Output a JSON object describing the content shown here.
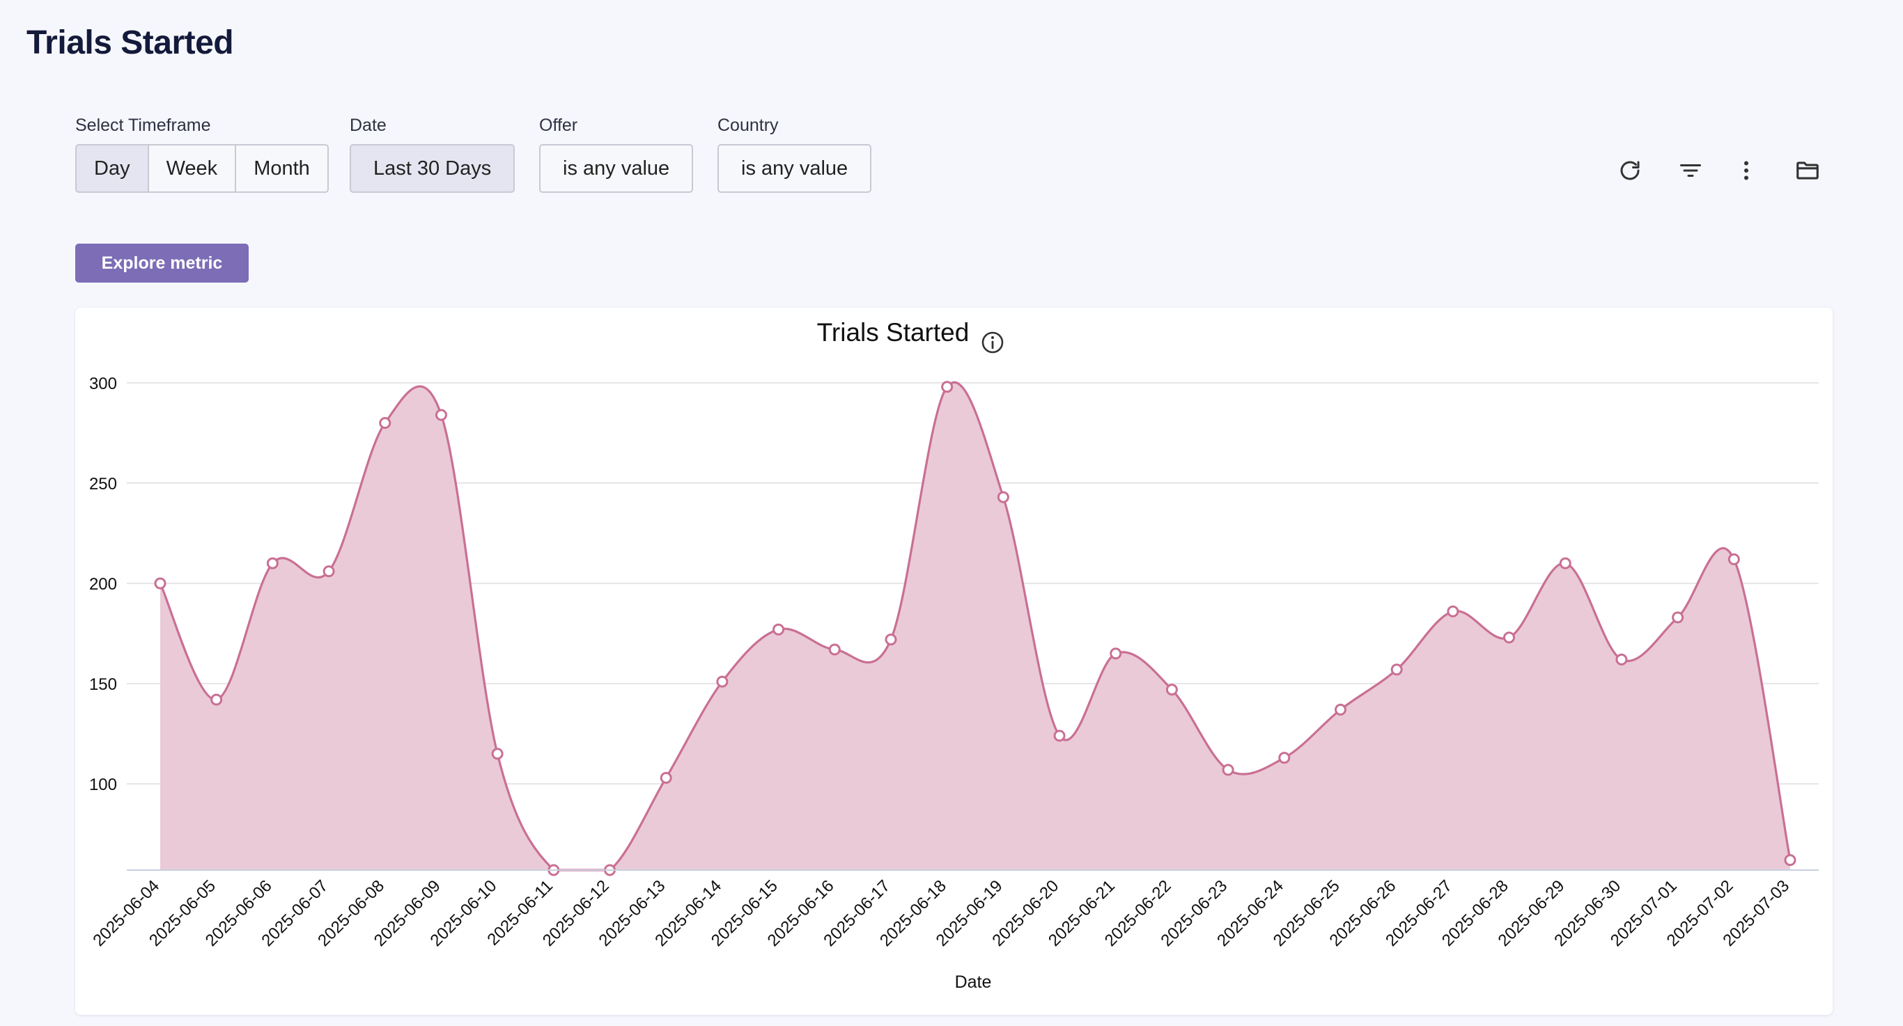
{
  "page": {
    "title": "Trials Started"
  },
  "filters": {
    "timeframe": {
      "label": "Select Timeframe",
      "options": [
        "Day",
        "Week",
        "Month"
      ],
      "selected": "Day"
    },
    "date": {
      "label": "Date",
      "value": "Last 30 Days"
    },
    "offer": {
      "label": "Offer",
      "value": "is any value"
    },
    "country": {
      "label": "Country",
      "value": "is any value"
    }
  },
  "toolbar": {
    "icons": [
      "refresh-icon",
      "filter-icon",
      "more-vertical-icon",
      "folder-icon"
    ]
  },
  "explore_button": {
    "label": "Explore metric"
  },
  "colors": {
    "accent": "#7c6db6",
    "line": "#c96f94",
    "fill": "#e9c7d4",
    "grid": "#e6e6e9"
  },
  "chart_data": {
    "type": "area",
    "title": "Trials Started",
    "xlabel": "Date",
    "ylabel": "",
    "ylim": [
      57,
      300
    ],
    "yticks": [
      100,
      150,
      200,
      250,
      300
    ],
    "grid": true,
    "categories": [
      "2025-06-04",
      "2025-06-05",
      "2025-06-06",
      "2025-06-07",
      "2025-06-08",
      "2025-06-09",
      "2025-06-10",
      "2025-06-11",
      "2025-06-12",
      "2025-06-13",
      "2025-06-14",
      "2025-06-15",
      "2025-06-16",
      "2025-06-17",
      "2025-06-18",
      "2025-06-19",
      "2025-06-20",
      "2025-06-21",
      "2025-06-22",
      "2025-06-23",
      "2025-06-24",
      "2025-06-25",
      "2025-06-26",
      "2025-06-27",
      "2025-06-28",
      "2025-06-29",
      "2025-06-30",
      "2025-07-01",
      "2025-07-02",
      "2025-07-03"
    ],
    "series": [
      {
        "name": "Trials Started",
        "values": [
          200,
          142,
          210,
          206,
          280,
          284,
          115,
          57,
          57,
          103,
          151,
          177,
          167,
          172,
          298,
          243,
          124,
          165,
          147,
          107,
          113,
          137,
          157,
          186,
          173,
          210,
          162,
          183,
          212,
          62
        ]
      }
    ]
  }
}
